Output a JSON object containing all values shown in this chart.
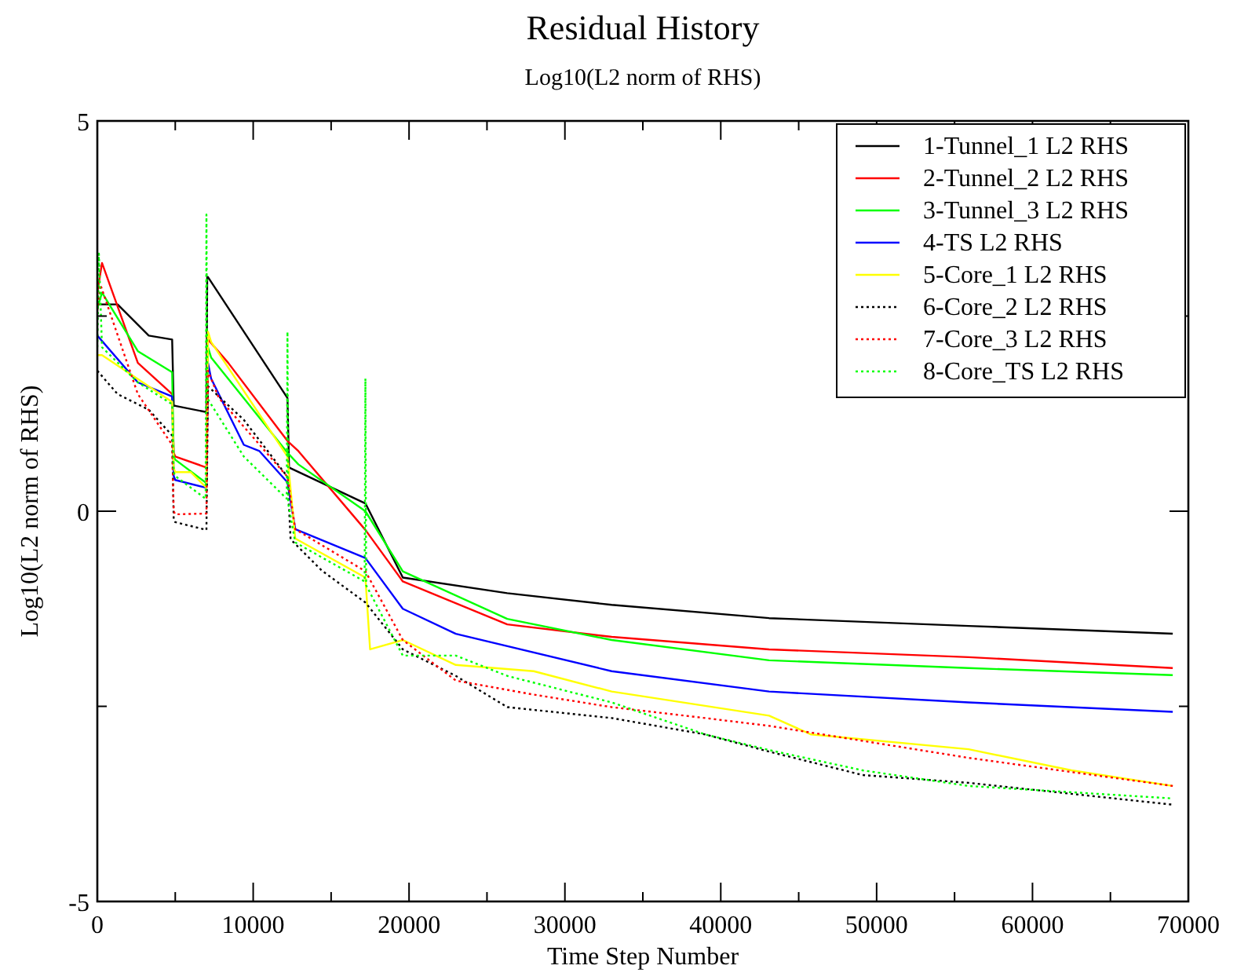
{
  "chart_data": {
    "type": "line",
    "title": "Residual History",
    "subtitle": "Log10(L2 norm of RHS)",
    "xlabel": "Time Step Number",
    "ylabel": "Log10(L2 norm of RHS)",
    "xlim": [
      0,
      70000
    ],
    "ylim": [
      -5,
      5
    ],
    "xticks": [
      0,
      {
        "value": 5000,
        "label": null
      },
      10000,
      {
        "value": 15000,
        "label": null
      },
      20000,
      {
        "value": 25000,
        "label": null
      },
      30000,
      {
        "value": 35000,
        "label": null
      },
      40000,
      {
        "value": 45000,
        "label": null
      },
      50000,
      {
        "value": 55000,
        "label": null
      },
      60000,
      {
        "value": 65000,
        "label": null
      },
      70000
    ],
    "yticks": [
      -5,
      {
        "value": -2.5,
        "label": null
      },
      0,
      {
        "value": 2.5,
        "label": null
      },
      5
    ],
    "grid": false,
    "legend": "top right",
    "series": [
      {
        "name": "1-Tunnel_1 L2 RHS",
        "color": "#000000",
        "line_style": "solid",
        "x": [
          0,
          1300,
          3300,
          4800,
          4900,
          5000,
          7000,
          7050,
          7100,
          12200,
          12300,
          17200,
          19600,
          26300,
          33000,
          43100,
          55900,
          69000
        ],
        "values": [
          2.65,
          2.65,
          2.25,
          2.2,
          1.35,
          1.35,
          1.27,
          3.0,
          3.0,
          1.45,
          0.56,
          0.1,
          -0.85,
          -1.05,
          -1.2,
          -1.37,
          -1.47,
          -1.57
        ]
      },
      {
        "name": "2-Tunnel_2 L2 RHS",
        "color": "#ff0000",
        "line_style": "solid",
        "x": [
          0,
          300,
          2600,
          4800,
          4900,
          5000,
          7000,
          7100,
          8400,
          12200,
          12900,
          17200,
          19600,
          26300,
          33000,
          43100,
          55900,
          69000
        ],
        "values": [
          2.8,
          3.18,
          1.9,
          1.5,
          0.75,
          0.7,
          0.56,
          2.2,
          1.9,
          0.9,
          0.77,
          -0.24,
          -0.9,
          -1.45,
          -1.61,
          -1.77,
          -1.87,
          -2.01
        ]
      },
      {
        "name": "3-Tunnel_3 L2 RHS",
        "color": "#00ff00",
        "line_style": "solid",
        "x": [
          0,
          300,
          2600,
          4800,
          4900,
          5000,
          7000,
          7100,
          7300,
          12200,
          12900,
          17200,
          19600,
          26300,
          33000,
          43100,
          55900,
          69000
        ],
        "values": [
          2.6,
          2.8,
          2.05,
          1.78,
          0.7,
          0.66,
          0.36,
          2.1,
          1.97,
          0.75,
          0.6,
          0.0,
          -0.77,
          -1.38,
          -1.65,
          -1.91,
          -2.01,
          -2.1
        ]
      },
      {
        "name": "4-TS L2 RHS",
        "color": "#0000ff",
        "line_style": "solid",
        "x": [
          0,
          2600,
          4800,
          4900,
          5000,
          7000,
          7100,
          7300,
          9400,
          10400,
          12200,
          12700,
          17200,
          19600,
          23000,
          33000,
          43100,
          55900,
          69000
        ],
        "values": [
          2.25,
          1.65,
          1.47,
          0.45,
          0.4,
          0.3,
          1.9,
          1.7,
          0.85,
          0.77,
          0.37,
          -0.23,
          -0.6,
          -1.25,
          -1.57,
          -2.05,
          -2.31,
          -2.45,
          -2.57
        ]
      },
      {
        "name": "5-Core_1 L2 RHS",
        "color": "#ffff00",
        "line_style": "solid",
        "x": [
          0,
          300,
          4800,
          4900,
          5000,
          6000,
          7000,
          7100,
          7300,
          12200,
          12700,
          17200,
          17500,
          19600,
          23000,
          28000,
          33000,
          43100,
          45800,
          55900,
          62500,
          69000
        ],
        "values": [
          2.0,
          2.0,
          1.4,
          0.55,
          0.5,
          0.5,
          0.3,
          2.3,
          2.17,
          0.7,
          -0.35,
          -0.85,
          -1.77,
          -1.65,
          -1.97,
          -2.05,
          -2.31,
          -2.62,
          -2.86,
          -3.05,
          -3.32,
          -3.52
        ]
      },
      {
        "name": "6-Core_2 L2 RHS",
        "color": "#000000",
        "line_style": "dotted",
        "x": [
          0,
          1300,
          3300,
          4800,
          4900,
          5000,
          7000,
          7100,
          9400,
          12200,
          12400,
          14400,
          17200,
          19600,
          23000,
          26300,
          33000,
          39000,
          43100,
          49100,
          55900,
          69000
        ],
        "values": [
          1.8,
          1.5,
          1.3,
          0.97,
          -0.1,
          -0.14,
          -0.24,
          1.6,
          1.17,
          0.44,
          -0.36,
          -0.76,
          -1.17,
          -1.77,
          -2.11,
          -2.51,
          -2.65,
          -2.86,
          -3.08,
          -3.38,
          -3.48,
          -3.76
        ]
      },
      {
        "name": "7-Core_3 L2 RHS",
        "color": "#ff0000",
        "line_style": "dotted",
        "x": [
          0,
          200,
          2600,
          4800,
          4900,
          5000,
          7000,
          7100,
          7800,
          12200,
          12700,
          17200,
          19600,
          23000,
          28000,
          33000,
          39000,
          43100,
          55900,
          69000
        ],
        "values": [
          2.57,
          2.9,
          1.5,
          0.85,
          0.0,
          -0.04,
          -0.03,
          1.8,
          1.45,
          0.44,
          -0.23,
          -0.77,
          -1.65,
          -2.17,
          -2.35,
          -2.51,
          -2.65,
          -2.75,
          -3.16,
          -3.52
        ]
      },
      {
        "name": "8-Core_TS L2 RHS",
        "color": "#00ff00",
        "line_style": "dotted",
        "x": [
          0,
          100,
          300,
          2600,
          4800,
          4900,
          5000,
          6950,
          7000,
          7050,
          7300,
          9400,
          12150,
          12200,
          12250,
          12700,
          17150,
          17200,
          17250,
          19600,
          23000,
          26300,
          33000,
          39000,
          43100,
          49100,
          55900,
          69000
        ],
        "values": [
          2.1,
          3.3,
          2.1,
          1.65,
          1.37,
          0.5,
          0.45,
          0.16,
          3.8,
          1.45,
          1.37,
          0.7,
          0.16,
          2.3,
          0.1,
          -0.4,
          -0.9,
          1.7,
          -0.95,
          -1.85,
          -1.85,
          -2.11,
          -2.45,
          -2.86,
          -3.06,
          -3.32,
          -3.52,
          -3.68
        ]
      }
    ]
  }
}
